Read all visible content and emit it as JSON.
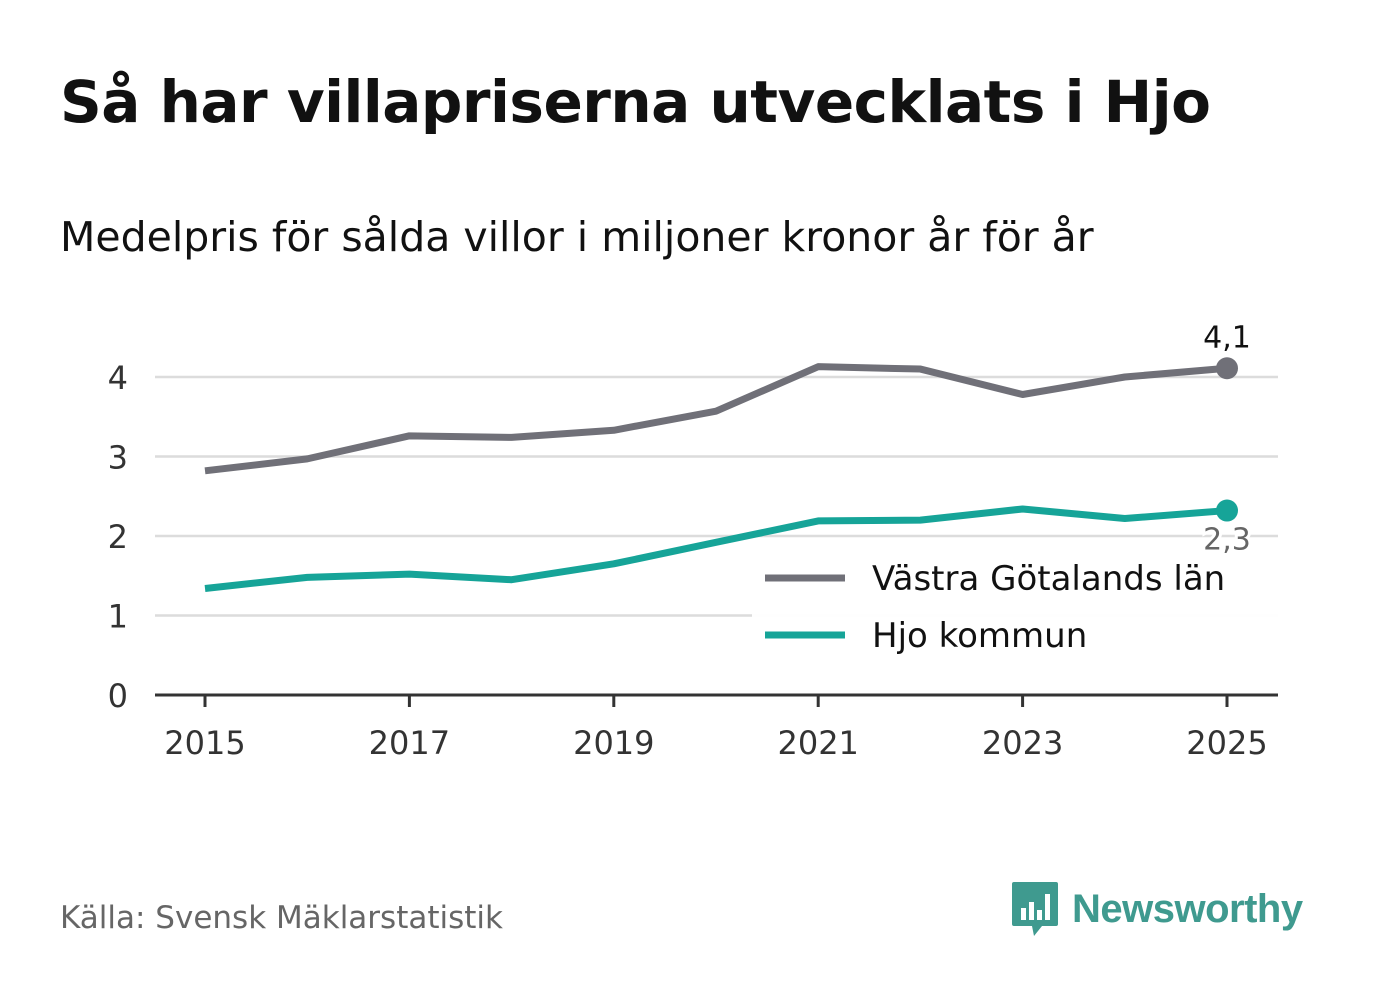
{
  "title": "Så har villapriserna utvecklats i Hjo",
  "subtitle": "Medelpris för sålda villor i miljoner kronor år för år",
  "source": "Källa: Svensk Mäklarstatistik",
  "brand": "Newsworthy",
  "colors": {
    "vgl": "#707078",
    "hjo": "#16a498",
    "brand": "#3f9a8f",
    "grid": "#dcdcdc",
    "axis": "#333333"
  },
  "chart_data": {
    "type": "line",
    "title": "Så har villapriserna utvecklats i Hjo",
    "subtitle": "Medelpris för sålda villor i miljoner kronor år för år",
    "xlabel": "",
    "ylabel": "",
    "x": [
      2015,
      2016,
      2017,
      2018,
      2019,
      2020,
      2021,
      2022,
      2023,
      2024,
      2025
    ],
    "x_ticks": [
      "2015",
      "2017",
      "2019",
      "2021",
      "2023",
      "2025"
    ],
    "y_ticks": [
      "0",
      "1",
      "2",
      "3",
      "4"
    ],
    "ylim": [
      0,
      4.4
    ],
    "grid": true,
    "legend_position": "bottom-right",
    "series": [
      {
        "name": "Västra Götalands län",
        "color": "#707078",
        "values": [
          2.82,
          2.97,
          3.26,
          3.24,
          3.33,
          3.57,
          4.13,
          4.1,
          3.78,
          4.0,
          4.11
        ],
        "end_label": "4,1"
      },
      {
        "name": "Hjo kommun",
        "color": "#16a498",
        "values": [
          1.34,
          1.48,
          1.52,
          1.45,
          1.65,
          1.92,
          2.19,
          2.2,
          2.34,
          2.22,
          2.32
        ],
        "end_label": "2,3"
      }
    ]
  }
}
